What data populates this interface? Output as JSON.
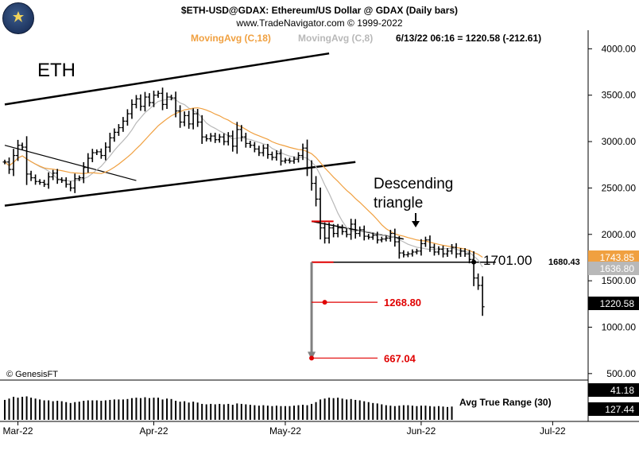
{
  "header": {
    "title": "$ETH-USD@GDAX:  Ethereum/US Dollar @ GDAX  (Daily bars)",
    "site": "www.TradeNavigator.com © 1999-2022",
    "ma18_label": "MovingAvg (C,18)",
    "ma8_label": "MovingAvg (C,8)",
    "quote": "6/13/22 06:16 = 1220.58 (-212.61)"
  },
  "colors": {
    "price_bars": "#000000",
    "ma18": "#f0a040",
    "ma8": "#b8b8b8",
    "channel": "#000000",
    "target": "#e00000",
    "projection": "#808080"
  },
  "chart_data": {
    "type": "bar",
    "subtype": "ohlc",
    "title": "ETH",
    "ylim": [
      430,
      4200
    ],
    "y_ticks": [
      "4000.00",
      "3500.00",
      "3000.00",
      "2500.00",
      "2000.00",
      "1500.00",
      "1000.00",
      "500.00"
    ],
    "y_tick_values": [
      4000,
      3500,
      3000,
      2500,
      2000,
      1500,
      1000,
      500
    ],
    "x_labels": [
      "Mar-22",
      "Apr-22",
      "May-22",
      "Jun-22",
      "Jul-22"
    ],
    "grid": false,
    "closes": [
      2780,
      2700,
      2850,
      2960,
      2940,
      2650,
      2610,
      2570,
      2560,
      2540,
      2620,
      2660,
      2590,
      2580,
      2540,
      2500,
      2600,
      2610,
      2720,
      2820,
      2880,
      2890,
      2850,
      2940,
      3040,
      3100,
      3150,
      3220,
      3300,
      3400,
      3460,
      3380,
      3480,
      3420,
      3500,
      3520,
      3400,
      3480,
      3470,
      3330,
      3210,
      3280,
      3190,
      3300,
      3210,
      3050,
      3030,
      3060,
      3020,
      3050,
      3000,
      3060,
      2950,
      3130,
      3050,
      2980,
      2960,
      2920,
      2880,
      2930,
      2860,
      2830,
      2870,
      2790,
      2800,
      2790,
      2810,
      2850,
      2930,
      2720,
      2550,
      2380,
      2070,
      1960,
      2070,
      2010,
      2070,
      2030,
      2000,
      2110,
      2010,
      2050,
      1980,
      1970,
      1990,
      1940,
      1950,
      1960,
      2010,
      1920,
      1800,
      1780,
      1790,
      1810,
      1820,
      1900,
      1940,
      1860,
      1810,
      1840,
      1790,
      1820,
      1860,
      1790,
      1820,
      1790,
      1730,
      1530,
      1450,
      1220
    ],
    "ma18_label": "MovingAvg (C,18)",
    "ma8_label": "MovingAvg (C,8)",
    "last_value": "6/13/22 06:16 = 1220.58 (-212.61)",
    "annotations": {
      "ticker": "ETH",
      "pattern_line1": "Descending",
      "pattern_line2": "triangle",
      "level_1701": "1701.00",
      "level_1680": "1680.43",
      "target_1": "1268.80",
      "target_2": "667.04",
      "copyright": "© GenesisFT"
    },
    "right_badges": {
      "ma18": "1743.85",
      "ma8": "1636.80",
      "last": "1220.58"
    },
    "lines": {
      "upper_channel": [
        [
          0,
          3400
        ],
        [
          74,
          3950
        ]
      ],
      "lower_channel": [
        [
          0,
          2310
        ],
        [
          80,
          2780
        ]
      ],
      "inner_trend": [
        [
          0,
          2960
        ],
        [
          30,
          2580
        ]
      ],
      "triangle_top": [
        [
          70,
          2140
        ],
        [
          91,
          1950
        ]
      ],
      "triangle_base": [
        [
          70,
          1700
        ],
        [
          112,
          1700
        ]
      ],
      "resistance_red": [
        [
          70,
          2140
        ],
        [
          75,
          2140
        ]
      ],
      "base_red": [
        [
          70,
          1700
        ],
        [
          75,
          1700
        ]
      ]
    },
    "targets": [
      {
        "value": 1268.8,
        "label": "1268.80"
      },
      {
        "value": 667.04,
        "label": "667.04"
      }
    ],
    "projection_from": 1700,
    "projection_to": 667.04
  },
  "indicator": {
    "label": "Avg True Range (30)",
    "value_top": "41.18",
    "value_bottom": "127.44",
    "values": [
      105,
      108,
      112,
      110,
      112,
      113,
      110,
      108,
      106,
      104,
      104,
      102,
      103,
      102,
      100,
      98,
      100,
      101,
      103,
      104,
      104,
      104,
      103,
      104,
      105,
      106,
      106,
      106,
      107,
      109,
      110,
      109,
      111,
      109,
      110,
      110,
      106,
      108,
      107,
      103,
      101,
      102,
      99,
      101,
      99,
      96,
      95,
      96,
      95,
      96,
      95,
      96,
      94,
      97,
      96,
      95,
      94,
      93,
      92,
      93,
      92,
      91,
      92,
      91,
      91,
      91,
      92,
      93,
      94,
      93,
      96,
      100,
      106,
      108,
      110,
      109,
      110,
      108,
      106,
      107,
      105,
      104,
      102,
      100,
      98,
      97,
      95,
      93,
      92,
      91,
      92,
      93,
      93,
      92,
      91,
      92,
      92,
      91,
      90,
      91,
      90,
      89,
      90,
      89,
      90,
      90,
      92,
      100,
      110,
      127.44
    ]
  }
}
